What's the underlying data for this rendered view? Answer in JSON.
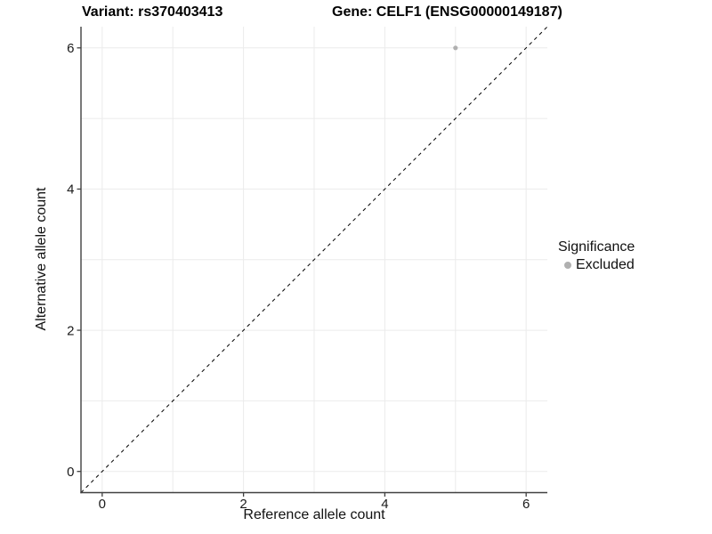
{
  "page": {
    "background": "#ffffff"
  },
  "chart_data": {
    "type": "scatter",
    "titles": {
      "left": "Variant: rs370403413",
      "right": "Gene: CELF1 (ENSG00000149187)"
    },
    "xlabel": "Reference allele count",
    "ylabel": "Alternative allele count",
    "xlim": [
      -0.3,
      6.3
    ],
    "ylim": [
      -0.3,
      6.3
    ],
    "x_ticks": [
      0,
      2,
      4,
      6
    ],
    "y_ticks": [
      0,
      2,
      4,
      6
    ],
    "x_gridlines": [
      0,
      1,
      2,
      3,
      4,
      5,
      6
    ],
    "y_gridlines": [
      0,
      1,
      2,
      3,
      4,
      5,
      6
    ],
    "grid": true,
    "series": [
      {
        "name": "Excluded",
        "color": "#b0b0b0",
        "points": [
          {
            "x": 5,
            "y": 6
          }
        ]
      }
    ],
    "reference_line": {
      "slope": 1,
      "intercept": 0,
      "style": "dashed",
      "color": "#000000"
    },
    "legend": {
      "title": "Significance",
      "position": "right",
      "items": [
        {
          "label": "Excluded",
          "color": "#b0b0b0"
        }
      ]
    }
  },
  "style": {
    "grid_color": "#ebebeb",
    "axis_color": "#404040",
    "tick_text_color": "#1a1a1a",
    "text_color": "#111111",
    "background": "#ffffff"
  }
}
